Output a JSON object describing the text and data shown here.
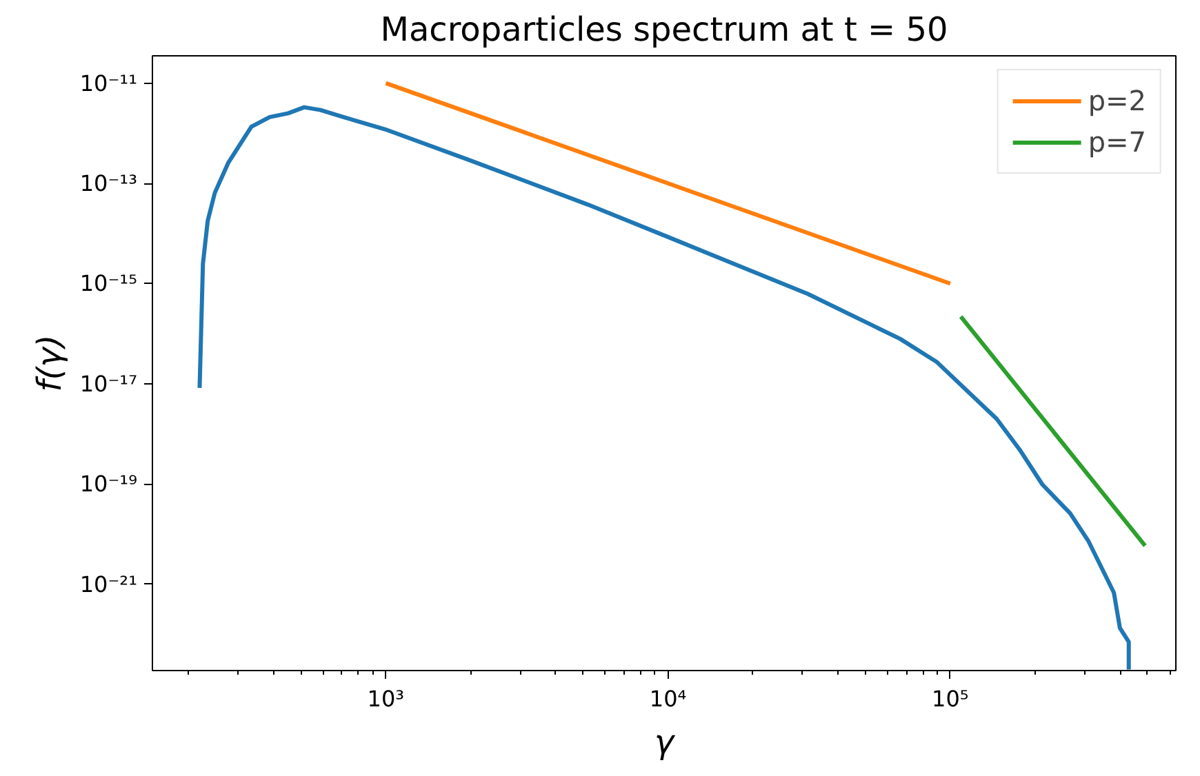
{
  "chart_data": {
    "type": "line",
    "title": "Macroparticles spectrum at t = 50",
    "xlabel": "γ",
    "ylabel": "f(γ)",
    "log": "xy",
    "grid": false,
    "legend": "top right",
    "xlim": [
      149,
      630000
    ],
    "ylim": [
      1.9e-23,
      3.5e-11
    ],
    "xticks": [
      {
        "value": 1000,
        "label": "10³"
      },
      {
        "value": 10000,
        "label": "10⁴"
      },
      {
        "value": 100000,
        "label": "10⁵"
      }
    ],
    "yticks": [
      {
        "value": 1e-11,
        "label": "10⁻¹¹"
      },
      {
        "value": 1e-13,
        "label": "10⁻¹³"
      },
      {
        "value": 1e-15,
        "label": "10⁻¹⁵"
      },
      {
        "value": 1e-17,
        "label": "10⁻¹⁷"
      },
      {
        "value": 1e-19,
        "label": "10⁻¹⁹"
      },
      {
        "value": 1e-21,
        "label": "10⁻²¹"
      }
    ],
    "series": [
      {
        "color": "#1f77b4",
        "x": [
          219,
          225,
          234,
          248,
          277,
          334,
          388,
          451,
          514,
          587,
          708,
          993,
          1950,
          5180,
          10000,
          31300,
          66400,
          89800,
          108000,
          146000,
          176000,
          212000,
          266000,
          309000,
          380000,
          399000,
          429000,
          429000
        ],
        "values": [
          8.3e-18,
          2.5e-15,
          1.8e-14,
          6.5e-14,
          2.6e-13,
          1.35e-12,
          2.1e-12,
          2.5e-12,
          3.3e-12,
          2.9e-12,
          2.1e-12,
          1.2e-12,
          3e-13,
          3.8e-14,
          8.5e-15,
          6.2e-16,
          7.9e-17,
          2.7e-17,
          1e-17,
          2e-18,
          4.9e-19,
          9.8e-20,
          2.6e-20,
          7.2e-21,
          6.8e-22,
          1.35e-22,
          7.1e-23,
          2e-23
        ]
      },
      {
        "name": "p=2",
        "color": "#ff7f0e",
        "x": [
          1000,
          100000
        ],
        "values": [
          1e-11,
          1e-15
        ]
      },
      {
        "name": "p=7",
        "color": "#2ca02c",
        "x": [
          109000,
          490000
        ],
        "values": [
          2.2e-16,
          5.9e-21
        ]
      }
    ]
  }
}
